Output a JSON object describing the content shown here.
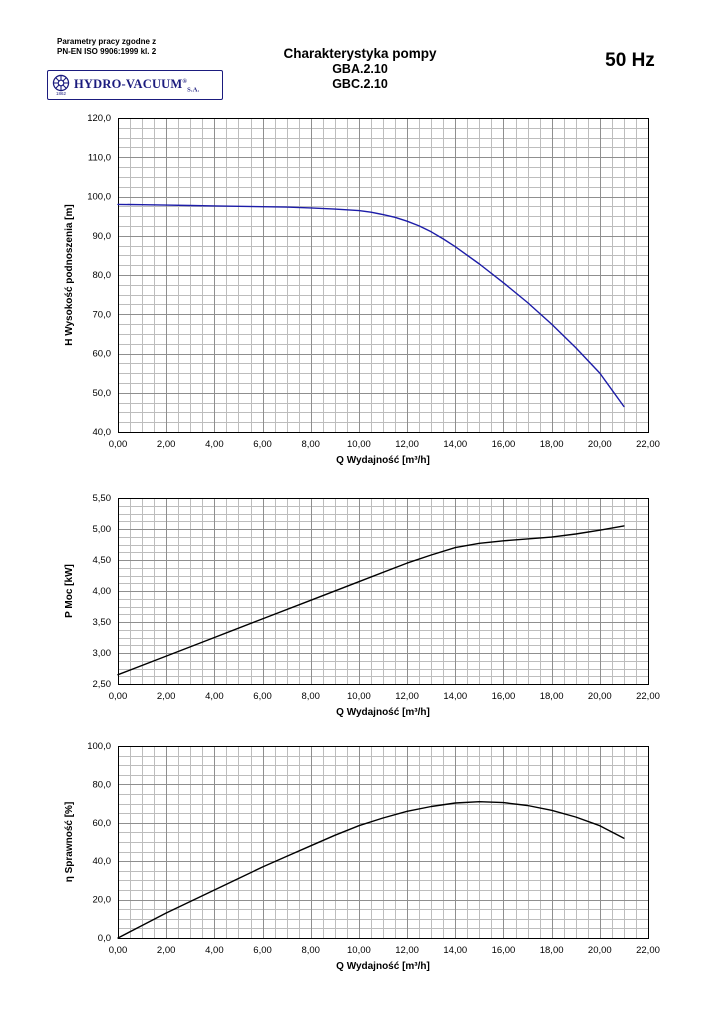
{
  "header": {
    "compliance_line1": "Parametry pracy zgodne z",
    "compliance_line2": "PN-EN ISO 9906:1999 kl. 2",
    "logo_text": "HYDRO-VACUUM",
    "logo_reg": "®",
    "logo_sa": "S.A.",
    "logo_year": "1862",
    "title": "Charakterystyka pompy",
    "model1": "GBA.2.10",
    "model2": "GBC.2.10",
    "frequency": "50 Hz"
  },
  "chart_data": [
    {
      "type": "line",
      "name": "head-curve",
      "xlabel": "Q Wydajność [m³/h]",
      "ylabel": "H Wysokość podnoszenia [m]",
      "xlim": [
        0,
        22
      ],
      "ylim": [
        40,
        120
      ],
      "x_minor": 0.5,
      "y_minor": 2.5,
      "x_tick_values": [
        0,
        2,
        4,
        6,
        8,
        10,
        12,
        14,
        16,
        18,
        20,
        22
      ],
      "x_tick_labels": [
        "0,00",
        "2,00",
        "4,00",
        "6,00",
        "8,00",
        "10,00",
        "12,00",
        "14,00",
        "16,00",
        "18,00",
        "20,00",
        "22,00"
      ],
      "y_tick_values": [
        40,
        50,
        60,
        70,
        80,
        90,
        100,
        110,
        120
      ],
      "y_tick_labels": [
        "40,0",
        "50,0",
        "60,0",
        "70,0",
        "80,0",
        "90,0",
        "100,0",
        "110,0",
        "120,0"
      ],
      "grid": true,
      "legend": "none",
      "series": [
        {
          "name": "H",
          "color": "#1c1ca8",
          "x": [
            0,
            1,
            2,
            3,
            4,
            5,
            6,
            7,
            8,
            9,
            10,
            10.5,
            11,
            11.5,
            12,
            12.5,
            13,
            13.5,
            14,
            15,
            16,
            17,
            18,
            19,
            20,
            21
          ],
          "y": [
            98,
            97.9,
            97.8,
            97.7,
            97.6,
            97.5,
            97.4,
            97.3,
            97.1,
            96.8,
            96.4,
            96.0,
            95.4,
            94.7,
            93.7,
            92.5,
            91.0,
            89.2,
            87.2,
            82.8,
            78.0,
            73.0,
            67.5,
            61.5,
            55.0,
            46.5
          ]
        }
      ]
    },
    {
      "type": "line",
      "name": "power-curve",
      "xlabel": "Q Wydajność [m³/h]",
      "ylabel": "P Moc [kW]",
      "xlim": [
        0,
        22
      ],
      "ylim": [
        2.5,
        5.5
      ],
      "x_minor": 0.5,
      "y_minor": 0.125,
      "x_tick_values": [
        0,
        2,
        4,
        6,
        8,
        10,
        12,
        14,
        16,
        18,
        20,
        22
      ],
      "x_tick_labels": [
        "0,00",
        "2,00",
        "4,00",
        "6,00",
        "8,00",
        "10,00",
        "12,00",
        "14,00",
        "16,00",
        "18,00",
        "20,00",
        "22,00"
      ],
      "y_tick_values": [
        2.5,
        3.0,
        3.5,
        4.0,
        4.5,
        5.0,
        5.5
      ],
      "y_tick_labels": [
        "2,50",
        "3,00",
        "3,50",
        "4,00",
        "4,50",
        "5,00",
        "5,50"
      ],
      "grid": true,
      "legend": "none",
      "series": [
        {
          "name": "P",
          "color": "#000000",
          "x": [
            0,
            2,
            4,
            6,
            8,
            10,
            12,
            13,
            14,
            15,
            16,
            17,
            18,
            19,
            20,
            21
          ],
          "y": [
            2.65,
            2.95,
            3.25,
            3.55,
            3.85,
            4.15,
            4.45,
            4.58,
            4.7,
            4.77,
            4.81,
            4.84,
            4.87,
            4.92,
            4.98,
            5.05
          ]
        }
      ]
    },
    {
      "type": "line",
      "name": "efficiency-curve",
      "xlabel": "Q Wydajność [m³/h]",
      "ylabel": "η Sprawność [%]",
      "xlim": [
        0,
        22
      ],
      "ylim": [
        0,
        100
      ],
      "x_minor": 0.5,
      "y_minor": 5,
      "x_tick_values": [
        0,
        2,
        4,
        6,
        8,
        10,
        12,
        14,
        16,
        18,
        20,
        22
      ],
      "x_tick_labels": [
        "0,00",
        "2,00",
        "4,00",
        "6,00",
        "8,00",
        "10,00",
        "12,00",
        "14,00",
        "16,00",
        "18,00",
        "20,00",
        "22,00"
      ],
      "y_tick_values": [
        0,
        20,
        40,
        60,
        80,
        100
      ],
      "y_tick_labels": [
        "0,0",
        "20,0",
        "40,0",
        "60,0",
        "80,0",
        "100,0"
      ],
      "grid": true,
      "legend": "none",
      "series": [
        {
          "name": "eta",
          "color": "#000000",
          "x": [
            0,
            1,
            2,
            3,
            4,
            5,
            6,
            7,
            8,
            9,
            10,
            11,
            12,
            13,
            14,
            15,
            16,
            17,
            18,
            19,
            20,
            21
          ],
          "y": [
            0,
            6.5,
            13,
            19,
            25,
            31,
            37,
            42.5,
            48,
            53.5,
            58.5,
            62.5,
            66,
            68.5,
            70.3,
            71,
            70.5,
            69,
            66.5,
            63,
            58.5,
            52
          ]
        }
      ]
    }
  ]
}
